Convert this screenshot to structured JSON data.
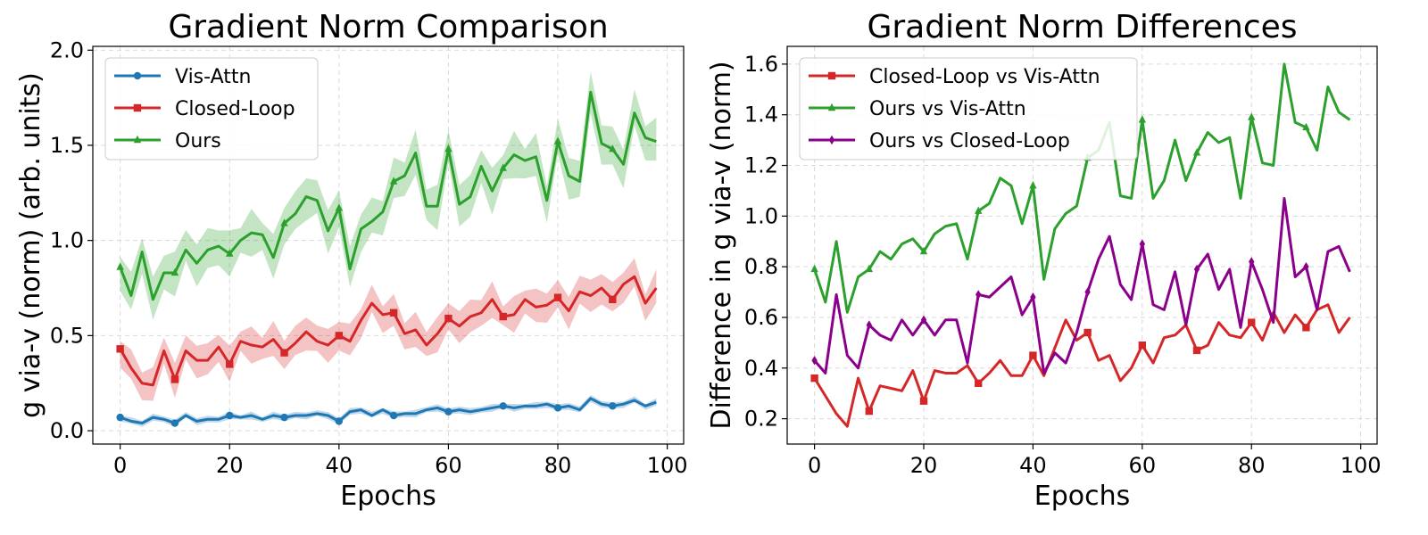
{
  "chart_data": [
    {
      "type": "line",
      "title": "Gradient Norm Comparison",
      "xlabel": "Epochs",
      "ylabel": "g via-v (norm) (arb. units)",
      "xlim": [
        -5,
        103
      ],
      "ylim": [
        -0.07,
        2.02
      ],
      "xticks": [
        0,
        20,
        40,
        60,
        80,
        100
      ],
      "yticks": [
        0.0,
        0.5,
        1.0,
        1.5,
        2.0
      ],
      "ytick_labels": [
        "0.0",
        "0.5",
        "1.0",
        "1.5",
        "2.0"
      ],
      "grid": true,
      "legend": "top-left",
      "x": [
        0,
        2,
        4,
        6,
        8,
        10,
        12,
        14,
        16,
        18,
        20,
        22,
        24,
        26,
        28,
        30,
        32,
        34,
        36,
        38,
        40,
        42,
        44,
        46,
        48,
        50,
        52,
        54,
        56,
        58,
        60,
        62,
        64,
        66,
        68,
        70,
        72,
        74,
        76,
        78,
        80,
        82,
        84,
        86,
        88,
        90,
        92,
        94,
        96,
        98
      ],
      "series": [
        {
          "name": "Vis-Attn",
          "color": "#1f77b4",
          "marker": "circle",
          "values": [
            0.07,
            0.05,
            0.04,
            0.07,
            0.06,
            0.04,
            0.08,
            0.05,
            0.06,
            0.06,
            0.08,
            0.07,
            0.08,
            0.06,
            0.08,
            0.07,
            0.08,
            0.08,
            0.09,
            0.08,
            0.05,
            0.1,
            0.11,
            0.08,
            0.11,
            0.08,
            0.09,
            0.09,
            0.11,
            0.12,
            0.1,
            0.11,
            0.1,
            0.11,
            0.12,
            0.13,
            0.12,
            0.13,
            0.13,
            0.14,
            0.12,
            0.13,
            0.11,
            0.17,
            0.14,
            0.13,
            0.14,
            0.16,
            0.13,
            0.15
          ],
          "band": 0.015
        },
        {
          "name": "Closed-Loop",
          "color": "#d62728",
          "marker": "square",
          "values": [
            0.43,
            0.33,
            0.25,
            0.24,
            0.42,
            0.27,
            0.42,
            0.37,
            0.37,
            0.44,
            0.35,
            0.47,
            0.45,
            0.44,
            0.48,
            0.41,
            0.46,
            0.52,
            0.47,
            0.45,
            0.5,
            0.47,
            0.58,
            0.67,
            0.61,
            0.62,
            0.51,
            0.53,
            0.45,
            0.51,
            0.59,
            0.55,
            0.6,
            0.62,
            0.69,
            0.6,
            0.61,
            0.69,
            0.65,
            0.66,
            0.7,
            0.63,
            0.73,
            0.71,
            0.75,
            0.69,
            0.77,
            0.81,
            0.67,
            0.75
          ],
          "band": 0.07
        },
        {
          "name": "Ours",
          "color": "#2ca02c",
          "marker": "triangle",
          "values": [
            0.86,
            0.71,
            0.94,
            0.69,
            0.83,
            0.83,
            0.95,
            0.88,
            0.95,
            0.97,
            0.93,
            1.0,
            1.04,
            1.03,
            0.91,
            1.09,
            1.14,
            1.23,
            1.21,
            1.05,
            1.17,
            0.85,
            1.06,
            1.1,
            1.15,
            1.31,
            1.34,
            1.46,
            1.18,
            1.18,
            1.48,
            1.19,
            1.23,
            1.39,
            1.26,
            1.38,
            1.45,
            1.42,
            1.44,
            1.21,
            1.52,
            1.34,
            1.31,
            1.78,
            1.51,
            1.48,
            1.4,
            1.67,
            1.54,
            1.52
          ],
          "band": 0.09
        }
      ]
    },
    {
      "type": "line",
      "title": "Gradient Norm Differences",
      "xlabel": "Epochs",
      "ylabel": "Difference in g via-v (norm)",
      "xlim": [
        -5,
        103
      ],
      "ylim": [
        0.1,
        1.67
      ],
      "xticks": [
        0,
        20,
        40,
        60,
        80,
        100
      ],
      "yticks": [
        0.2,
        0.4,
        0.6,
        0.8,
        1.0,
        1.2,
        1.4,
        1.6
      ],
      "ytick_labels": [
        "0.2",
        "0.4",
        "0.6",
        "0.8",
        "1.0",
        "1.2",
        "1.4",
        "1.6"
      ],
      "grid": true,
      "legend": "top-left",
      "x": [
        0,
        2,
        4,
        6,
        8,
        10,
        12,
        14,
        16,
        18,
        20,
        22,
        24,
        26,
        28,
        30,
        32,
        34,
        36,
        38,
        40,
        42,
        44,
        46,
        48,
        50,
        52,
        54,
        56,
        58,
        60,
        62,
        64,
        66,
        68,
        70,
        72,
        74,
        76,
        78,
        80,
        82,
        84,
        86,
        88,
        90,
        92,
        94,
        96,
        98
      ],
      "series": [
        {
          "name": "Closed-Loop vs Vis-Attn",
          "color": "#d62728",
          "marker": "square",
          "values": [
            0.36,
            0.29,
            0.22,
            0.17,
            0.36,
            0.23,
            0.33,
            0.32,
            0.31,
            0.39,
            0.27,
            0.39,
            0.38,
            0.38,
            0.41,
            0.34,
            0.38,
            0.43,
            0.37,
            0.37,
            0.45,
            0.37,
            0.48,
            0.59,
            0.51,
            0.54,
            0.43,
            0.45,
            0.35,
            0.4,
            0.49,
            0.42,
            0.52,
            0.53,
            0.57,
            0.47,
            0.49,
            0.58,
            0.53,
            0.52,
            0.58,
            0.51,
            0.62,
            0.54,
            0.61,
            0.56,
            0.63,
            0.65,
            0.54,
            0.6
          ]
        },
        {
          "name": "Ours vs Vis-Attn",
          "color": "#2ca02c",
          "marker": "triangle",
          "values": [
            0.79,
            0.66,
            0.9,
            0.62,
            0.76,
            0.79,
            0.86,
            0.83,
            0.89,
            0.91,
            0.86,
            0.93,
            0.96,
            0.97,
            0.83,
            1.02,
            1.05,
            1.15,
            1.12,
            0.97,
            1.12,
            0.75,
            0.95,
            1.01,
            1.04,
            1.23,
            1.26,
            1.37,
            1.08,
            1.07,
            1.38,
            1.07,
            1.14,
            1.3,
            1.14,
            1.25,
            1.33,
            1.29,
            1.31,
            1.07,
            1.39,
            1.21,
            1.2,
            1.6,
            1.37,
            1.35,
            1.26,
            1.51,
            1.41,
            1.38
          ]
        },
        {
          "name": "Ours vs Closed-Loop",
          "color": "#8b008b",
          "marker": "diamond",
          "values": [
            0.43,
            0.38,
            0.69,
            0.45,
            0.4,
            0.57,
            0.53,
            0.51,
            0.59,
            0.53,
            0.59,
            0.53,
            0.59,
            0.59,
            0.42,
            0.69,
            0.68,
            0.72,
            0.76,
            0.61,
            0.68,
            0.38,
            0.46,
            0.42,
            0.54,
            0.7,
            0.83,
            0.92,
            0.73,
            0.67,
            0.89,
            0.65,
            0.63,
            0.78,
            0.57,
            0.79,
            0.85,
            0.71,
            0.79,
            0.56,
            0.82,
            0.71,
            0.58,
            1.07,
            0.76,
            0.8,
            0.63,
            0.86,
            0.88,
            0.78
          ]
        }
      ]
    }
  ]
}
